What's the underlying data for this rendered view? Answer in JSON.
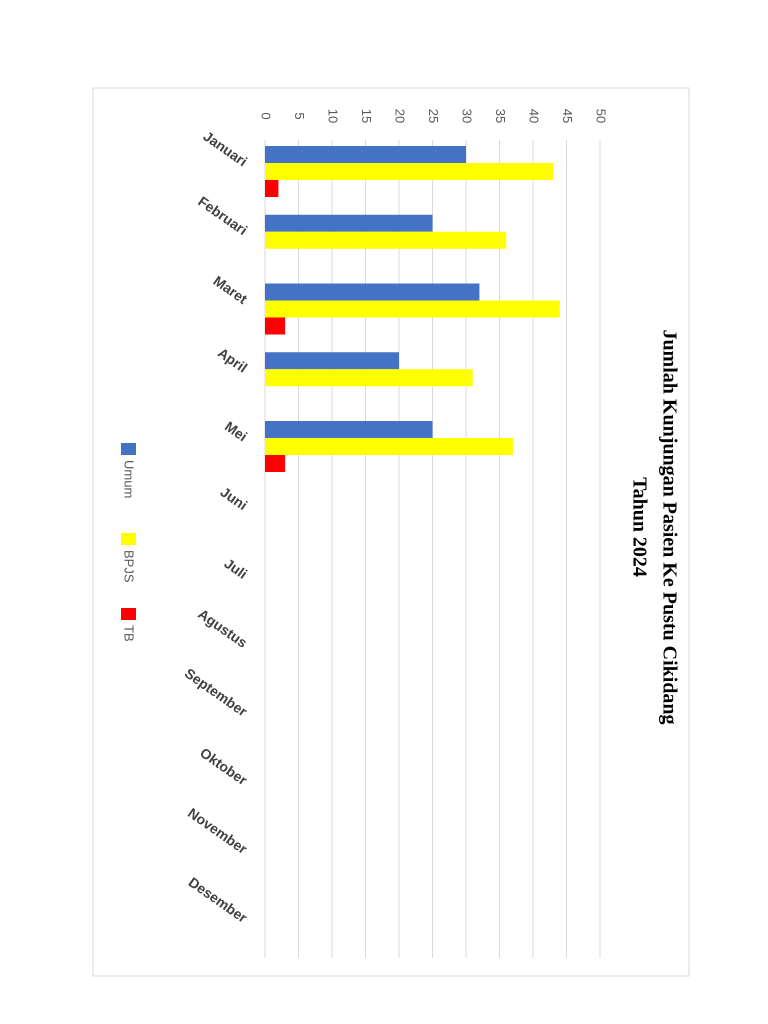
{
  "chart_data": {
    "type": "bar",
    "title": [
      "Jumlah Kunjungan Pasien Ke Pustu Cikidang",
      "Tahun 2024"
    ],
    "categories": [
      "Januari",
      "Februari",
      "Maret",
      "April",
      "Mei",
      "Juni",
      "Juli",
      "Agustus",
      "September",
      "Oktober",
      "November",
      "Desember"
    ],
    "series": [
      {
        "name": "Umum",
        "color": "#4472c4",
        "values": [
          30,
          25,
          32,
          20,
          25,
          null,
          null,
          null,
          null,
          null,
          null,
          null
        ]
      },
      {
        "name": "BPJS",
        "color": "#ffff00",
        "values": [
          43,
          36,
          44,
          31,
          37,
          null,
          null,
          null,
          null,
          null,
          null,
          null
        ]
      },
      {
        "name": "TB",
        "color": "#ff0000",
        "values": [
          2,
          null,
          3,
          null,
          3,
          null,
          null,
          null,
          null,
          null,
          null,
          null
        ]
      }
    ],
    "ylim": [
      0,
      50
    ],
    "yticks": [
      0,
      5,
      10,
      15,
      20,
      25,
      30,
      35,
      40,
      45,
      50
    ],
    "grid": true,
    "legend": "bottom"
  }
}
